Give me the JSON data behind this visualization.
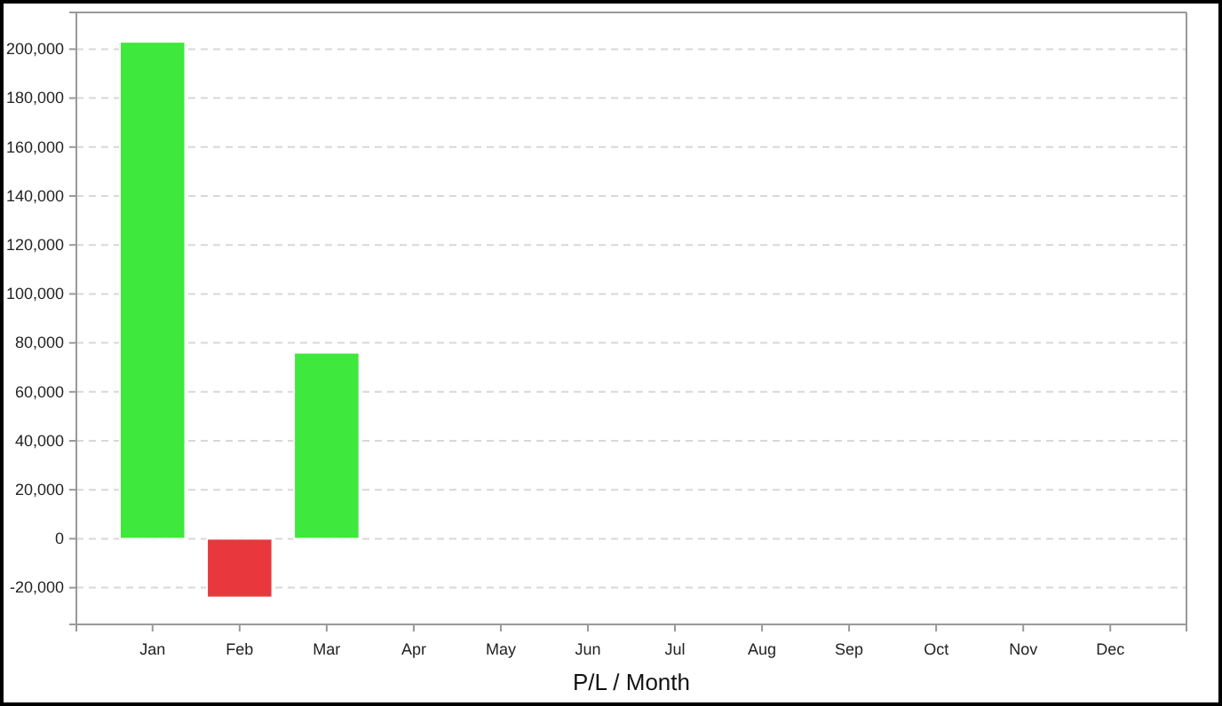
{
  "chart_data": {
    "type": "bar",
    "xlabel": "P/L / Month",
    "categories": [
      "Jan",
      "Feb",
      "Mar",
      "Apr",
      "May",
      "Jun",
      "Jul",
      "Aug",
      "Sep",
      "Oct",
      "Nov",
      "Dec"
    ],
    "values": [
      203000,
      -24000,
      76000,
      null,
      null,
      null,
      null,
      null,
      null,
      null,
      null,
      null
    ],
    "colors": [
      "#3fe83c",
      "#e8383d",
      "#3fe83c",
      null,
      null,
      null,
      null,
      null,
      null,
      null,
      null,
      null
    ],
    "ylim": [
      -35000,
      215000
    ],
    "yticks": [
      {
        "value": -20000,
        "label": "-20,000"
      },
      0,
      {
        "value": 20000,
        "label": "20,000"
      },
      {
        "value": 40000,
        "label": "40,000"
      },
      {
        "value": 60000,
        "label": "60,000"
      },
      {
        "value": 80000,
        "label": "80,000"
      },
      {
        "value": 100000,
        "label": "100,000"
      },
      {
        "value": 120000,
        "label": "120,000"
      },
      {
        "value": 140000,
        "label": "140,000"
      },
      {
        "value": 160000,
        "label": "160,000"
      },
      {
        "value": 180000,
        "label": "180,000"
      },
      {
        "value": 200000,
        "label": "200,000"
      }
    ],
    "grid": "y"
  }
}
